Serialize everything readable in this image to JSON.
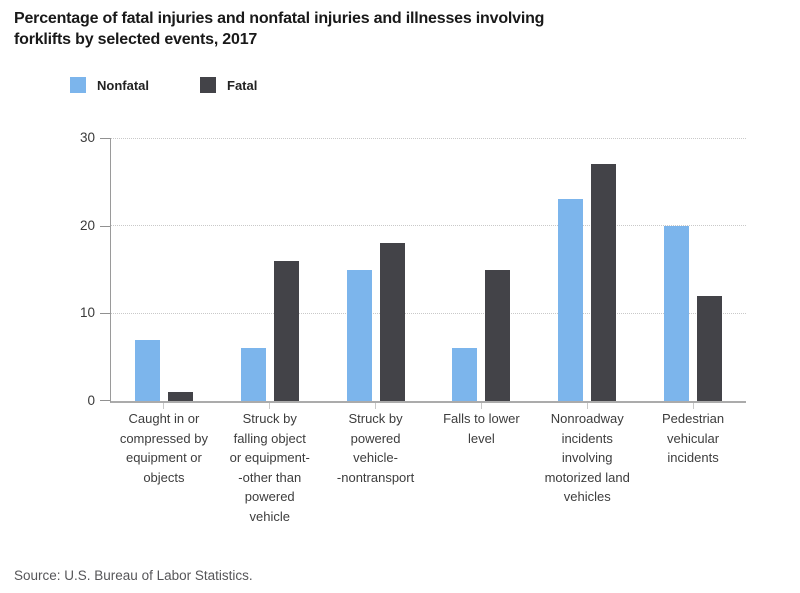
{
  "title": "Percentage of fatal injuries and nonfatal injuries and illnesses involving\nforklifts by selected events, 2017",
  "source_note": "Source: U.S. Bureau of Labor Statistics.",
  "chart_data": {
    "type": "bar",
    "title": "Percentage of fatal injuries and nonfatal injuries and illnesses involving forklifts by selected events, 2017",
    "categories": [
      "Caught in or\ncompressed by\nequipment or\nobjects",
      "Struck by\nfalling object\nor equipment-\n-other than\npowered\nvehicle",
      "Struck by\npowered\nvehicle-\n-nontransport",
      "Falls to lower\nlevel",
      "Nonroadway\nincidents\ninvolving\nmotorized land\nvehicles",
      "Pedestrian\nvehicular\nincidents"
    ],
    "series": [
      {
        "name": "Nonfatal",
        "color": "#7cb5ec",
        "values": [
          7,
          6,
          15,
          6,
          23,
          20
        ]
      },
      {
        "name": "Fatal",
        "color": "#434348",
        "values": [
          1,
          16,
          18,
          15,
          27,
          12
        ]
      }
    ],
    "ylim": [
      0,
      30
    ],
    "yticks": [
      0,
      10,
      20,
      30
    ],
    "xlabel": "",
    "ylabel": "",
    "grid": "horizontal-dotted",
    "grid_color": "#c9c9c9",
    "axis_color": "#ababab",
    "legend_position": "top-left"
  }
}
